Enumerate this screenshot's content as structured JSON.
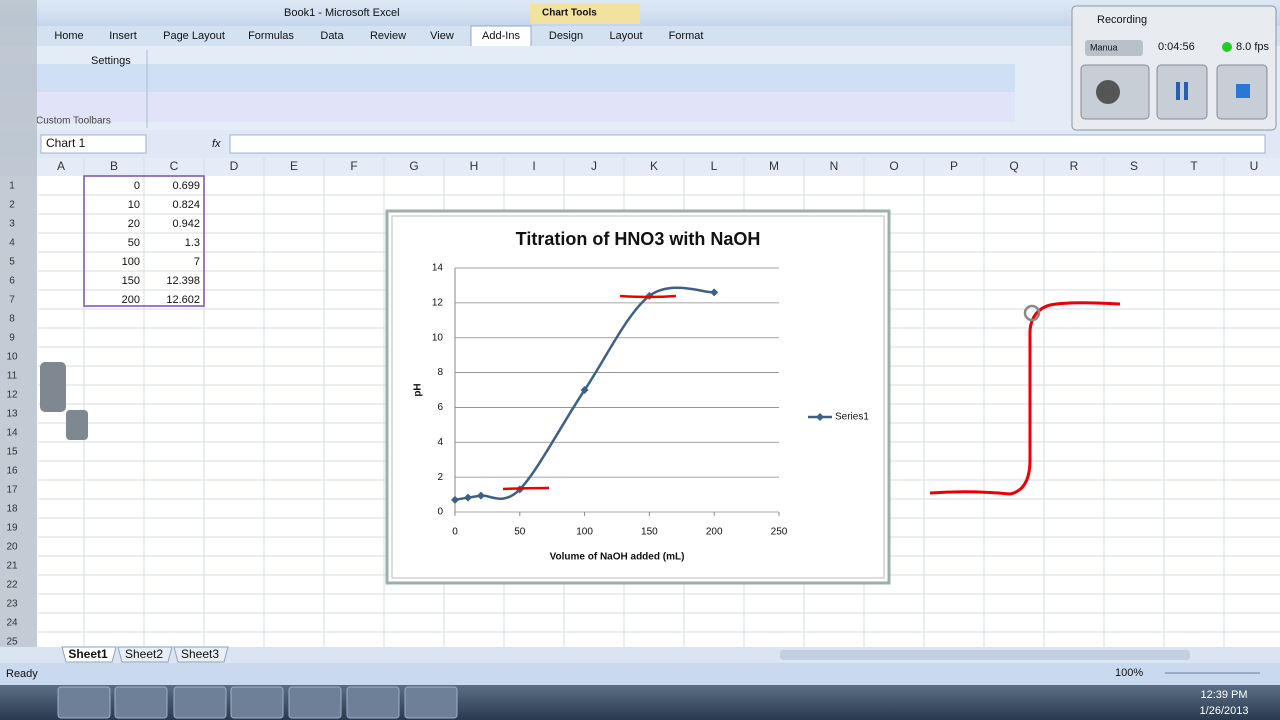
{
  "window": {
    "title": "Book1 - Microsoft Excel",
    "context": "Chart Tools"
  },
  "ribbon": {
    "tabs": [
      "Home",
      "Insert",
      "Page Layout",
      "Formulas",
      "Data",
      "Review",
      "View",
      "Add-Ins",
      "Design",
      "Layout",
      "Format"
    ],
    "settings": "Settings",
    "group": "Custom Toolbars"
  },
  "formula_bar": {
    "name_box": "Chart 1",
    "fx": "fx"
  },
  "sheet": {
    "columns": [
      "A",
      "B",
      "C",
      "D",
      "E",
      "F",
      "G",
      "H",
      "I",
      "J",
      "K",
      "L",
      "M",
      "N",
      "O",
      "P",
      "Q",
      "R",
      "S",
      "T",
      "U"
    ],
    "rows": [
      1,
      2,
      3,
      4,
      5,
      6,
      7,
      8,
      9,
      10,
      11,
      12,
      13,
      14,
      15,
      16,
      17,
      18,
      19,
      20,
      21,
      22,
      23,
      24,
      25
    ]
  },
  "chart_data": {
    "type": "line",
    "title": "Titration of HNO3 with NaOH",
    "x_label": "Volume of NaOH added (mL)",
    "y_label": "pH",
    "x": [
      0,
      10,
      20,
      50,
      100,
      150,
      200
    ],
    "series": [
      {
        "name": "Series1",
        "color": "#3d6185",
        "values": [
          0.699,
          0.824,
          0.942,
          1.3,
          7,
          12.398,
          12.602
        ]
      }
    ],
    "xlim": [
      0,
      250
    ],
    "xticks": [
      0,
      50,
      100,
      150,
      200,
      250
    ],
    "ylim": [
      0,
      14
    ],
    "yticks": [
      0,
      2,
      4,
      6,
      8,
      10,
      12,
      14
    ],
    "grid": true,
    "legend": "right"
  },
  "sheet_tabs": [
    "Sheet1",
    "Sheet2",
    "Sheet3"
  ],
  "status": {
    "mode": "Ready",
    "zoom": "100%"
  },
  "recorder": {
    "title": "Recording",
    "mode": "Manua",
    "time": "0:04:56",
    "fps": "8.0 fps"
  },
  "taskbar": {
    "time": "12:39 PM",
    "date": "1/26/2013"
  }
}
